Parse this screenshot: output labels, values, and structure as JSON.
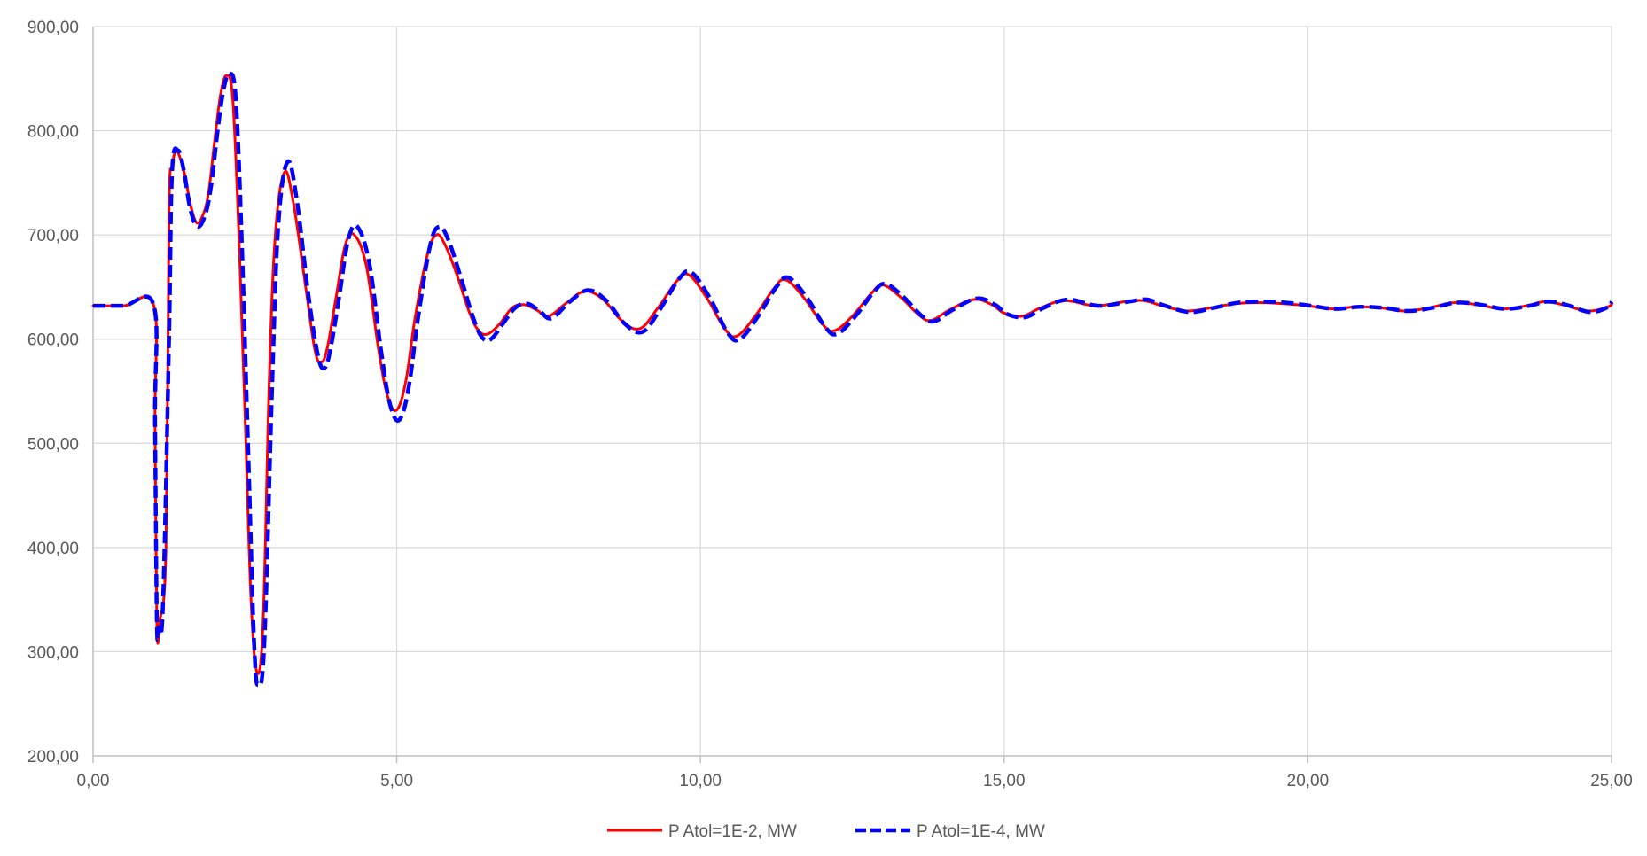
{
  "chart_data": {
    "type": "line",
    "title": "",
    "xlabel": "",
    "ylabel": "",
    "xlim": [
      0,
      25
    ],
    "ylim": [
      200,
      900
    ],
    "x_ticks": [
      "0,00",
      "5,00",
      "10,00",
      "15,00",
      "20,00",
      "25,00"
    ],
    "y_ticks": [
      "200,00",
      "300,00",
      "400,00",
      "500,00",
      "600,00",
      "700,00",
      "800,00",
      "900,00"
    ],
    "grid": true,
    "legend_position": "bottom",
    "series": [
      {
        "name": "P Atol=1E-2, MW",
        "color": "#ff0000",
        "style": "solid",
        "points": [
          [
            0.0,
            632
          ],
          [
            0.5,
            632
          ],
          [
            1.0,
            632
          ],
          [
            1.02,
            520
          ],
          [
            1.05,
            325
          ],
          [
            1.1,
            330
          ],
          [
            1.2,
            400
          ],
          [
            1.25,
            720
          ],
          [
            1.3,
            765
          ],
          [
            1.38,
            780
          ],
          [
            1.5,
            760
          ],
          [
            1.6,
            730
          ],
          [
            1.7,
            712
          ],
          [
            1.8,
            718
          ],
          [
            1.9,
            740
          ],
          [
            2.0,
            790
          ],
          [
            2.1,
            835
          ],
          [
            2.2,
            853
          ],
          [
            2.3,
            830
          ],
          [
            2.4,
            700
          ],
          [
            2.5,
            530
          ],
          [
            2.6,
            350
          ],
          [
            2.7,
            280
          ],
          [
            2.8,
            330
          ],
          [
            2.9,
            560
          ],
          [
            3.0,
            700
          ],
          [
            3.15,
            760
          ],
          [
            3.3,
            730
          ],
          [
            3.5,
            650
          ],
          [
            3.65,
            590
          ],
          [
            3.75,
            578
          ],
          [
            3.85,
            590
          ],
          [
            4.0,
            640
          ],
          [
            4.15,
            690
          ],
          [
            4.3,
            700
          ],
          [
            4.5,
            670
          ],
          [
            4.7,
            590
          ],
          [
            4.85,
            545
          ],
          [
            5.0,
            532
          ],
          [
            5.15,
            560
          ],
          [
            5.3,
            620
          ],
          [
            5.5,
            680
          ],
          [
            5.65,
            700
          ],
          [
            5.8,
            690
          ],
          [
            6.0,
            660
          ],
          [
            6.2,
            625
          ],
          [
            6.35,
            608
          ],
          [
            6.5,
            605
          ],
          [
            6.7,
            615
          ],
          [
            6.9,
            630
          ],
          [
            7.1,
            633
          ],
          [
            7.3,
            628
          ],
          [
            7.5,
            622
          ],
          [
            7.8,
            635
          ],
          [
            8.1,
            646
          ],
          [
            8.4,
            638
          ],
          [
            8.7,
            618
          ],
          [
            9.0,
            610
          ],
          [
            9.3,
            630
          ],
          [
            9.6,
            655
          ],
          [
            9.8,
            662
          ],
          [
            10.1,
            640
          ],
          [
            10.4,
            610
          ],
          [
            10.6,
            603
          ],
          [
            10.9,
            622
          ],
          [
            11.2,
            648
          ],
          [
            11.4,
            657
          ],
          [
            11.7,
            640
          ],
          [
            12.0,
            615
          ],
          [
            12.2,
            608
          ],
          [
            12.5,
            622
          ],
          [
            12.8,
            643
          ],
          [
            13.0,
            652
          ],
          [
            13.3,
            640
          ],
          [
            13.6,
            623
          ],
          [
            13.8,
            618
          ],
          [
            14.1,
            628
          ],
          [
            14.5,
            638
          ],
          [
            14.8,
            633
          ],
          [
            15.0,
            625
          ],
          [
            15.3,
            622
          ],
          [
            15.6,
            630
          ],
          [
            16.0,
            637
          ],
          [
            16.5,
            632
          ],
          [
            17.0,
            636
          ],
          [
            17.3,
            637
          ],
          [
            17.6,
            632
          ],
          [
            18.0,
            627
          ],
          [
            18.4,
            630
          ],
          [
            18.8,
            634
          ],
          [
            19.2,
            635
          ],
          [
            19.6,
            634
          ],
          [
            20.0,
            632
          ],
          [
            20.4,
            629
          ],
          [
            20.8,
            631
          ],
          [
            21.2,
            630
          ],
          [
            21.6,
            627
          ],
          [
            22.0,
            630
          ],
          [
            22.4,
            635
          ],
          [
            22.8,
            633
          ],
          [
            23.2,
            629
          ],
          [
            23.6,
            632
          ],
          [
            23.9,
            636
          ],
          [
            24.2,
            633
          ],
          [
            24.6,
            627
          ],
          [
            24.9,
            630
          ],
          [
            25.0,
            633
          ]
        ]
      },
      {
        "name": "P Atol=1E-4, MW",
        "color": "#0000ff",
        "style": "dashed",
        "points": [
          [
            0.0,
            632
          ],
          [
            0.5,
            632
          ],
          [
            1.0,
            632
          ],
          [
            1.02,
            520
          ],
          [
            1.05,
            330
          ],
          [
            1.08,
            323
          ],
          [
            1.15,
            345
          ],
          [
            1.25,
            600
          ],
          [
            1.3,
            760
          ],
          [
            1.4,
            781
          ],
          [
            1.5,
            760
          ],
          [
            1.6,
            725
          ],
          [
            1.72,
            708
          ],
          [
            1.85,
            720
          ],
          [
            1.95,
            750
          ],
          [
            2.05,
            800
          ],
          [
            2.15,
            840
          ],
          [
            2.25,
            855
          ],
          [
            2.35,
            830
          ],
          [
            2.45,
            690
          ],
          [
            2.55,
            500
          ],
          [
            2.65,
            310
          ],
          [
            2.72,
            268
          ],
          [
            2.82,
            310
          ],
          [
            2.95,
            560
          ],
          [
            3.05,
            710
          ],
          [
            3.2,
            770
          ],
          [
            3.35,
            735
          ],
          [
            3.55,
            640
          ],
          [
            3.7,
            585
          ],
          [
            3.8,
            572
          ],
          [
            3.9,
            588
          ],
          [
            4.05,
            640
          ],
          [
            4.2,
            695
          ],
          [
            4.35,
            708
          ],
          [
            4.55,
            672
          ],
          [
            4.75,
            585
          ],
          [
            4.9,
            535
          ],
          [
            5.05,
            523
          ],
          [
            5.2,
            555
          ],
          [
            5.35,
            620
          ],
          [
            5.55,
            690
          ],
          [
            5.7,
            708
          ],
          [
            5.85,
            695
          ],
          [
            6.05,
            660
          ],
          [
            6.25,
            622
          ],
          [
            6.4,
            602
          ],
          [
            6.55,
            600
          ],
          [
            6.75,
            615
          ],
          [
            6.95,
            630
          ],
          [
            7.15,
            634
          ],
          [
            7.35,
            627
          ],
          [
            7.55,
            620
          ],
          [
            7.85,
            636
          ],
          [
            8.15,
            647
          ],
          [
            8.45,
            637
          ],
          [
            8.75,
            615
          ],
          [
            9.05,
            607
          ],
          [
            9.35,
            630
          ],
          [
            9.65,
            658
          ],
          [
            9.85,
            664
          ],
          [
            10.15,
            640
          ],
          [
            10.45,
            606
          ],
          [
            10.65,
            600
          ],
          [
            10.95,
            622
          ],
          [
            11.25,
            650
          ],
          [
            11.45,
            659
          ],
          [
            11.75,
            640
          ],
          [
            12.05,
            612
          ],
          [
            12.25,
            605
          ],
          [
            12.55,
            622
          ],
          [
            12.85,
            645
          ],
          [
            13.05,
            653
          ],
          [
            13.35,
            640
          ],
          [
            13.65,
            622
          ],
          [
            13.85,
            617
          ],
          [
            14.15,
            628
          ],
          [
            14.55,
            639
          ],
          [
            14.85,
            633
          ],
          [
            15.05,
            624
          ],
          [
            15.35,
            621
          ],
          [
            15.65,
            630
          ],
          [
            16.05,
            638
          ],
          [
            16.55,
            632
          ],
          [
            17.05,
            636
          ],
          [
            17.35,
            638
          ],
          [
            17.65,
            632
          ],
          [
            18.05,
            626
          ],
          [
            18.45,
            630
          ],
          [
            18.85,
            635
          ],
          [
            19.25,
            636
          ],
          [
            19.65,
            635
          ],
          [
            20.05,
            632
          ],
          [
            20.45,
            629
          ],
          [
            20.85,
            631
          ],
          [
            21.25,
            630
          ],
          [
            21.65,
            627
          ],
          [
            22.05,
            630
          ],
          [
            22.45,
            635
          ],
          [
            22.85,
            633
          ],
          [
            23.25,
            629
          ],
          [
            23.65,
            632
          ],
          [
            23.95,
            636
          ],
          [
            24.25,
            633
          ],
          [
            24.65,
            626
          ],
          [
            24.95,
            631
          ],
          [
            25.0,
            636
          ]
        ]
      }
    ]
  }
}
